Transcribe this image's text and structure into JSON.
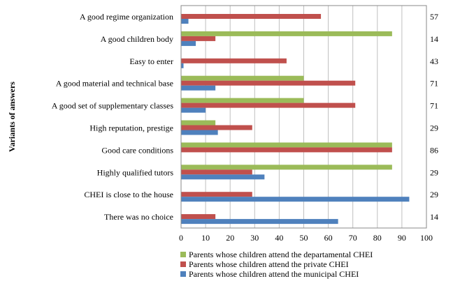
{
  "chart_data": {
    "type": "bar",
    "orientation": "horizontal",
    "ylabel": "Variants of answers",
    "xlim": [
      0,
      100
    ],
    "xticks": [
      0,
      10,
      20,
      30,
      40,
      50,
      60,
      70,
      80,
      90,
      100
    ],
    "grid": true,
    "legend_position": "bottom",
    "categories": [
      "A good regime organization",
      "A good children body",
      "Easy to enter",
      "A good material and technical base",
      "A good set of supplementary classes",
      "High reputation, prestige",
      "Good care conditions",
      "Highly qualified tutors",
      "CHEI is close to the house",
      "There was no choice"
    ],
    "side_values": [
      "57",
      "14",
      "43",
      "71",
      "71",
      "29",
      "86",
      "29",
      "29",
      "14"
    ],
    "series": [
      {
        "name": "Parents whose children attend the departamental CHEI",
        "color": "#9bbb59",
        "values": [
          0,
          86,
          0,
          50,
          50,
          14,
          86,
          86,
          0,
          0
        ]
      },
      {
        "name": "Parents whose children attend the private CHEI",
        "color": "#c0504d",
        "values": [
          57,
          14,
          43,
          71,
          71,
          29,
          86,
          29,
          29,
          14
        ]
      },
      {
        "name": "Parents whose children attend the municipal CHEI",
        "color": "#4f81bd",
        "values": [
          3,
          6,
          1,
          14,
          10,
          15,
          0,
          34,
          93,
          64
        ]
      }
    ]
  }
}
